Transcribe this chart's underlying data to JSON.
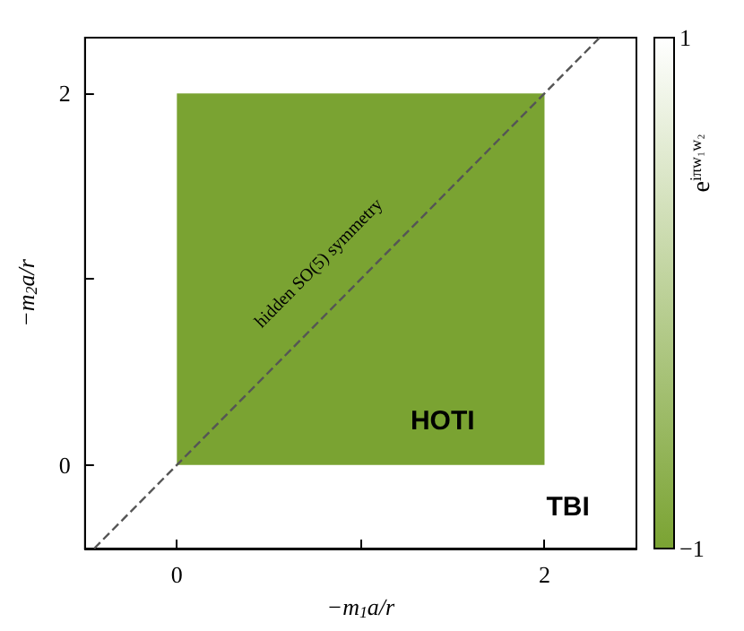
{
  "chart_data": {
    "type": "area",
    "xlabel": "−m$_{1}$a/r",
    "ylabel": "−m$_{2}$a/r",
    "clabel": "e$^{iπw₁w₂}$",
    "xlim": [
      -0.5,
      2.5
    ],
    "ylim": [
      -0.45,
      2.3
    ],
    "xticks": [
      0,
      {
        "value": 1,
        "label": null
      },
      2
    ],
    "yticks": [
      0,
      {
        "value": 1,
        "label": null
      },
      2
    ],
    "clim": [
      -1,
      1
    ],
    "cticks": [
      {
        "value": -1,
        "label": "−1"
      },
      1
    ],
    "series": [
      {
        "color": "#7aa332",
        "x": [
          0,
          2
        ],
        "values": [
          2,
          2
        ]
      },
      {
        "type": "line",
        "color": "#555555",
        "line_style": "dashed",
        "x": [
          -0.45,
          2.3
        ],
        "values": [
          -0.45,
          2.3
        ]
      }
    ],
    "annotations": [
      "hidden SO(5) symmetry",
      "HOTI",
      "TBI"
    ]
  }
}
